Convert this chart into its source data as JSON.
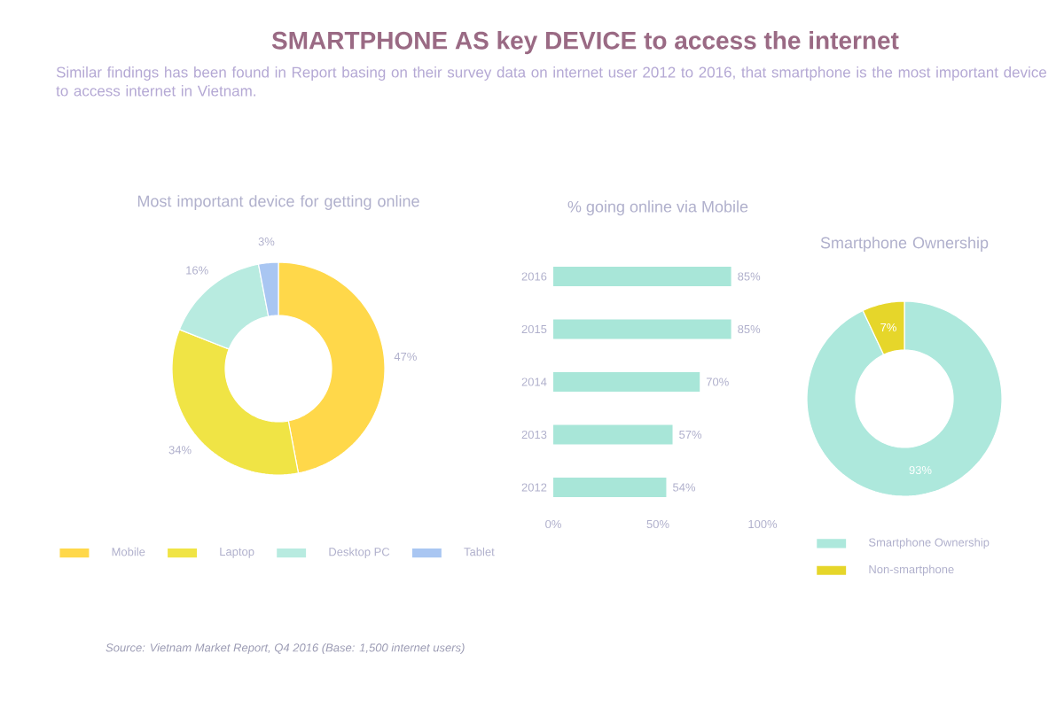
{
  "chart_data": [
    {
      "type": "other",
      "title": "SMARTPHONE AS key DEVICE to access the internet",
      "subtitle": "Similar findings has been found in Report basing on their survey data on internet user 2012 to 2016, that smartphone is the most important device to access internet in Vietnam.",
      "annotations": [
        "Source: Vietnam Market Report, Q4 2016 (Base: 1,500 internet users)"
      ]
    },
    {
      "type": "donut",
      "title": "Most important device for getting online",
      "categories": [
        "Mobile",
        "Laptop",
        "Desktop PC",
        "Tablet"
      ],
      "values": [
        47,
        34,
        16,
        3
      ],
      "colors": [
        "#ffd84a",
        "#f0e445",
        "#b8ebe0",
        "#a9c6f2"
      ],
      "value_labels": [
        "47%",
        "34%",
        "16%",
        "3%"
      ],
      "legend": "bottom"
    },
    {
      "type": "bar",
      "orientation": "horizontal",
      "title": "% going online via Mobile",
      "categories": [
        "2016",
        "2015",
        "2014",
        "2013",
        "2012"
      ],
      "values": [
        85,
        85,
        70,
        57,
        54
      ],
      "color": "#a8e6d8",
      "value_labels": [
        "85%",
        "85%",
        "70%",
        "57%",
        "54%"
      ],
      "xlim": [
        0,
        100
      ],
      "xticks": [
        {
          "value": 0,
          "label": "0%"
        },
        {
          "value": 50,
          "label": "50%"
        },
        {
          "value": 100,
          "label": "100%"
        }
      ]
    },
    {
      "type": "donut",
      "title": "Smartphone Ownership",
      "categories": [
        "Smartphone Ownership",
        "Non-smartphone"
      ],
      "values": [
        93,
        7
      ],
      "colors": [
        "#ade8dc",
        "#e6d62a"
      ],
      "value_labels": [
        "93%",
        "7%"
      ],
      "legend": "bottom"
    }
  ]
}
